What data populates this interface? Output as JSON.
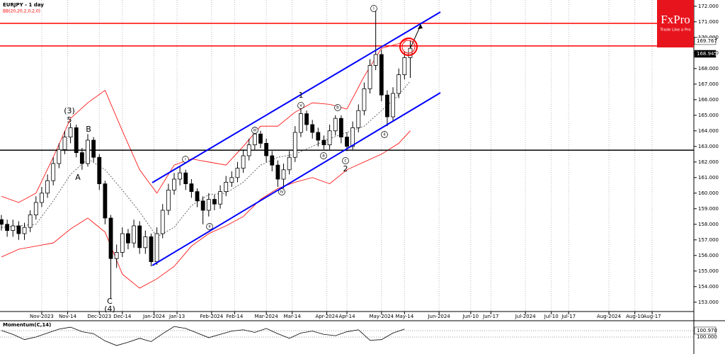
{
  "chart_data": [
    {
      "type": "candlestick",
      "title": "EURJPY - 1 day",
      "subtitle": "BB(20,20,2,0,2,0)",
      "x": [
        0,
        2,
        4,
        6,
        8,
        10,
        12,
        14,
        16,
        18,
        20,
        22,
        24,
        26,
        28,
        30,
        32,
        34,
        36,
        38,
        40,
        42,
        44,
        46,
        48,
        50,
        52,
        54,
        56,
        58,
        60,
        62,
        64,
        66,
        68,
        70,
        72,
        74,
        76,
        78,
        80,
        82,
        84,
        86,
        88,
        90,
        92,
        94,
        96,
        98,
        100,
        102,
        104,
        106,
        108,
        110,
        112,
        114,
        116,
        118,
        120,
        122,
        124,
        126,
        128,
        130,
        132,
        134,
        136,
        138,
        140,
        142
      ],
      "open": [
        158.3,
        158.0,
        157.6,
        157.9,
        157.4,
        157.8,
        158.6,
        159.4,
        160.0,
        160.8,
        161.9,
        162.8,
        163.6,
        164.2,
        162.6,
        161.9,
        163.4,
        162.3,
        160.6,
        158.4,
        155.8,
        156.2,
        157.4,
        156.8,
        157.9,
        156.5,
        157.2,
        155.6,
        157.4,
        158.9,
        160.2,
        160.9,
        161.3,
        160.6,
        160.1,
        159.5,
        158.9,
        159.6,
        159.3,
        160.1,
        160.7,
        161.0,
        161.6,
        162.4,
        163.1,
        163.8,
        163.2,
        162.4,
        161.8,
        160.9,
        161.5,
        162.3,
        163.9,
        165.1,
        164.4,
        163.9,
        163.4,
        163.1,
        164.0,
        164.8,
        163.6,
        163.0,
        164.2,
        165.3,
        166.7,
        168.2,
        168.9,
        166.3,
        164.9,
        166.4,
        167.6,
        168.7
      ],
      "high": [
        158.6,
        158.3,
        158.3,
        158.2,
        158.1,
        158.9,
        159.8,
        160.4,
        161.2,
        162.3,
        163.2,
        164.0,
        164.5,
        164.4,
        162.9,
        163.8,
        163.6,
        162.5,
        160.8,
        158.6,
        156.7,
        157.8,
        157.7,
        158.3,
        158.2,
        157.6,
        157.4,
        157.8,
        159.3,
        160.6,
        161.3,
        161.7,
        161.5,
        160.9,
        160.3,
        159.8,
        160.0,
        159.9,
        160.5,
        161.1,
        161.4,
        162.0,
        162.8,
        163.5,
        164.0,
        164.0,
        163.5,
        162.7,
        162.1,
        161.9,
        162.7,
        164.3,
        165.5,
        165.3,
        164.7,
        164.2,
        163.7,
        164.4,
        165.0,
        165.0,
        163.9,
        164.6,
        165.7,
        167.1,
        168.6,
        171.9,
        169.2,
        166.6,
        166.8,
        168.0,
        169.1,
        169.8
      ],
      "low": [
        157.6,
        157.2,
        157.2,
        157.0,
        157.0,
        157.5,
        158.3,
        159.1,
        159.7,
        160.5,
        161.6,
        162.5,
        163.2,
        162.3,
        161.5,
        161.7,
        162.0,
        160.2,
        158.0,
        153.2,
        155.2,
        155.9,
        156.4,
        156.5,
        156.1,
        156.1,
        155.3,
        155.4,
        157.1,
        158.6,
        159.9,
        160.5,
        160.2,
        159.7,
        159.1,
        158.0,
        158.5,
        158.9,
        159.0,
        159.8,
        160.4,
        160.7,
        161.3,
        162.1,
        162.8,
        162.9,
        162.0,
        161.4,
        160.4,
        160.3,
        161.2,
        162.0,
        163.6,
        164.0,
        163.5,
        163.0,
        162.8,
        162.8,
        163.7,
        163.2,
        162.7,
        162.8,
        163.9,
        165.0,
        166.4,
        167.9,
        165.9,
        164.3,
        164.6,
        166.1,
        167.3,
        167.4
      ],
      "close": [
        158.0,
        157.6,
        157.9,
        157.4,
        157.8,
        158.6,
        159.4,
        160.0,
        160.8,
        161.9,
        162.8,
        163.6,
        164.2,
        162.6,
        161.9,
        163.4,
        162.3,
        160.6,
        158.4,
        155.8,
        156.2,
        157.4,
        156.8,
        157.9,
        156.5,
        157.2,
        155.6,
        157.4,
        158.9,
        160.2,
        160.9,
        161.3,
        160.6,
        160.1,
        159.5,
        158.9,
        159.6,
        159.3,
        160.1,
        160.7,
        161.0,
        161.6,
        162.4,
        163.1,
        163.8,
        163.2,
        162.4,
        161.8,
        160.9,
        161.5,
        162.3,
        163.9,
        165.1,
        164.4,
        163.9,
        163.4,
        163.1,
        164.0,
        164.8,
        163.6,
        163.0,
        164.2,
        165.3,
        166.7,
        168.2,
        168.9,
        166.3,
        164.9,
        166.4,
        167.6,
        168.7,
        169.3
      ],
      "bands": {
        "color": "#ff0000",
        "x": [
          0,
          6,
          12,
          18,
          24,
          30,
          36,
          42,
          48,
          54,
          60,
          66,
          72,
          78,
          84,
          90,
          96,
          102,
          108,
          114,
          120,
          126,
          132,
          138,
          142
        ],
        "upper": [
          159.8,
          159.4,
          160.0,
          162.3,
          164.8,
          165.8,
          166.6,
          164.0,
          161.5,
          160.0,
          161.8,
          162.2,
          162.0,
          161.8,
          163.0,
          164.3,
          164.3,
          165.2,
          165.8,
          165.7,
          165.4,
          167.5,
          169.3,
          169.6,
          170.0
        ],
        "middle": [
          157.8,
          157.9,
          158.0,
          159.5,
          161.2,
          162.2,
          161.5,
          160.2,
          158.8,
          157.2,
          157.8,
          159.2,
          159.9,
          160.0,
          160.7,
          161.8,
          162.3,
          162.5,
          163.0,
          163.5,
          163.9,
          164.3,
          165.3,
          166.3,
          167.2
        ],
        "lower": [
          155.9,
          156.4,
          156.6,
          156.8,
          157.7,
          158.4,
          157.5,
          154.8,
          153.9,
          154.5,
          155.3,
          156.6,
          157.4,
          157.9,
          158.5,
          159.6,
          160.3,
          160.7,
          161.0,
          160.6,
          161.5,
          162.0,
          162.5,
          163.2,
          164.0
        ]
      },
      "levels": [
        {
          "value": 170.9,
          "color": "#ff0000"
        },
        {
          "value": 169.45,
          "color": "#ff0000"
        },
        {
          "value": 162.76,
          "color": "#000000"
        }
      ],
      "price_labels": [
        169.767,
        168.945
      ],
      "annotations": [
        "(3)",
        "5",
        "B",
        "A",
        "C",
        "(4)",
        "i",
        "ii",
        "iii",
        "iv",
        "v",
        "1",
        "a",
        "b",
        "c",
        "2",
        "i",
        "ii"
      ],
      "xlim": [
        0,
        240
      ],
      "xticks": [
        {
          "value": 14,
          "label": "Nov-2023"
        },
        {
          "value": 23,
          "label": "Nov-14"
        },
        {
          "value": 34,
          "label": "Dec-2023"
        },
        {
          "value": 42,
          "label": "Dec-14"
        },
        {
          "value": 53,
          "label": "Jan-2024"
        },
        {
          "value": 61,
          "label": "Jan-13"
        },
        {
          "value": 73,
          "label": "Feb-2024"
        },
        {
          "value": 81,
          "label": "Feb-14"
        },
        {
          "value": 92,
          "label": "Mar-2024"
        },
        {
          "value": 101,
          "label": "Mar-14"
        },
        {
          "value": 113,
          "label": "Apr-2024"
        },
        {
          "value": 120,
          "label": "Apr-14"
        },
        {
          "value": 132,
          "label": "May-2024"
        },
        {
          "value": 140,
          "label": "May-14"
        },
        {
          "value": 152,
          "label": "Jun-2024"
        },
        {
          "value": 163,
          "label": "Jun-10"
        },
        {
          "value": 170,
          "label": "Jun-17"
        },
        {
          "value": 182,
          "label": "Jul-2024"
        },
        {
          "value": 191,
          "label": "Jul-10"
        },
        {
          "value": 197,
          "label": "Jul-17"
        },
        {
          "value": 211,
          "label": "Aug-2024"
        },
        {
          "value": 220,
          "label": "Aug-10"
        },
        {
          "value": 226,
          "label": "Aug-17"
        }
      ],
      "ylim": [
        152.4,
        172.4
      ],
      "yticks": [
        {
          "value": 153,
          "label": "153.000"
        },
        {
          "value": 154,
          "label": "154.000"
        },
        {
          "value": 155,
          "label": "155.000"
        },
        {
          "value": 156,
          "label": "156.000"
        },
        {
          "value": 157,
          "label": "157.000"
        },
        {
          "value": 158,
          "label": "158.000"
        },
        {
          "value": 159,
          "label": "159.000"
        },
        {
          "value": 160,
          "label": "160.000"
        },
        {
          "value": 161,
          "label": "161.000"
        },
        {
          "value": 162,
          "label": "162.000"
        },
        {
          "value": 163,
          "label": "163.000"
        },
        {
          "value": 164,
          "label": "164.000"
        },
        {
          "value": 165,
          "label": "165.000"
        },
        {
          "value": 166,
          "label": "166.000"
        },
        {
          "value": 167,
          "label": "167.000"
        },
        {
          "value": 168,
          "label": "168.000"
        },
        {
          "value": 169,
          "label": "169.000"
        },
        {
          "value": 170,
          "label": "170.000"
        },
        {
          "value": 171,
          "label": "171.000"
        },
        {
          "value": 172,
          "label": "172.000"
        }
      ]
    },
    {
      "type": "line",
      "title": "Momentum(C,14)",
      "color": "#000000",
      "x": [
        0,
        4,
        8,
        12,
        16,
        20,
        24,
        28,
        32,
        36,
        40,
        44,
        48,
        52,
        56,
        60,
        64,
        68,
        72,
        76,
        80,
        84,
        88,
        92,
        96,
        100,
        104,
        108,
        112,
        116,
        120,
        124,
        128,
        132,
        136,
        140
      ],
      "values": [
        101.0,
        100.4,
        99.6,
        100.0,
        100.6,
        101.2,
        101.5,
        100.8,
        100.5,
        99.4,
        98.7,
        99.2,
        99.8,
        99.3,
        100.5,
        101.6,
        101.3,
        100.6,
        99.9,
        100.4,
        100.9,
        101.1,
        100.7,
        101.3,
        100.5,
        99.8,
        100.6,
        100.9,
        100.4,
        100.2,
        100.8,
        101.1,
        99.5,
        99.6,
        100.6,
        101.2
      ],
      "xlim": [
        0,
        240
      ],
      "ylim": [
        97.95,
        102.26
      ],
      "yticks": [
        {
          "value": 100.97,
          "label": "100.970"
        },
        {
          "value": 100,
          "label": "100.000"
        }
      ]
    }
  ],
  "logo": {
    "name": "FxPro",
    "tagline": "Trade Like a Pro"
  }
}
